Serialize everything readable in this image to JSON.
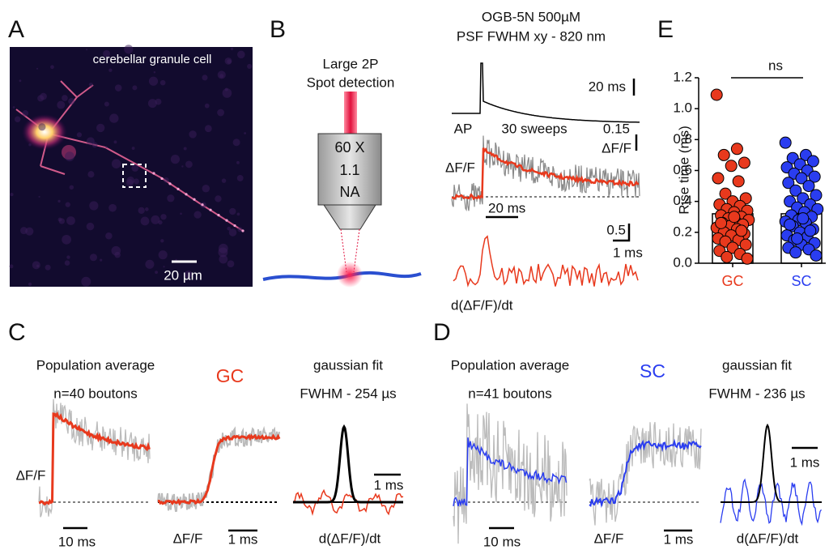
{
  "panels": {
    "A": {
      "label": "A",
      "caption": "cerebellar granule cell",
      "scale_bar": "20 µm"
    },
    "B": {
      "label": "B",
      "detection": [
        "Large 2P",
        "Spot detection"
      ],
      "objective": [
        "60 X",
        "1.1",
        "NA"
      ],
      "dye": "OGB-5N  500µM",
      "psf": "PSF FWHM xy - 820 nm",
      "ap_scale": "20 ms",
      "ap": "AP",
      "sweeps": "30 sweeps",
      "df_scale": "0.15",
      "df_scale_unit": "ΔF/F",
      "df_label": "ΔF/F",
      "time_scale": "20 ms",
      "deriv_scale": "0.5",
      "deriv_time": "1 ms",
      "deriv_label": "d(ΔF/F)/dt"
    },
    "C": {
      "label": "C",
      "title": "Population average",
      "n": "n=40 boutons",
      "cell": "GC",
      "fit": "gaussian fit",
      "fwhm": "FWHM - 254 µs",
      "df1": "ΔF/F",
      "t1": "10 ms",
      "df2": "ΔF/F",
      "t2": "1 ms",
      "t3": "1 ms",
      "deriv": "d(ΔF/F)/dt"
    },
    "D": {
      "label": "D",
      "title": "Population average",
      "n": "n=41 boutons",
      "cell": "SC",
      "fit": "gaussian fit",
      "fwhm": "FWHM - 236 µs",
      "t1": "10 ms",
      "df2": "ΔF/F",
      "t2": "1 ms",
      "t3": "1 ms",
      "deriv": "d(ΔF/F)/dt"
    }
  },
  "chart_data": {
    "type": "bar",
    "panel": "E",
    "ylabel": "Rise time (ms)",
    "annotation": "ns",
    "categories": [
      "GC",
      "SC"
    ],
    "values": [
      0.32,
      0.32
    ],
    "colors": [
      "#e8391d",
      "#2a3df0"
    ],
    "points": [
      [
        1.09,
        0.74,
        0.7,
        0.65,
        0.63,
        0.55,
        0.53,
        0.45,
        0.42,
        0.4,
        0.38,
        0.37,
        0.35,
        0.34,
        0.33,
        0.31,
        0.3,
        0.29,
        0.28,
        0.27,
        0.26,
        0.25,
        0.24,
        0.23,
        0.22,
        0.2,
        0.19,
        0.18,
        0.16,
        0.15,
        0.14,
        0.12,
        0.1,
        0.08,
        0.06,
        0.04,
        0.03,
        0.3,
        0.26,
        0.21
      ],
      [
        0.78,
        0.7,
        0.68,
        0.66,
        0.64,
        0.62,
        0.6,
        0.58,
        0.56,
        0.55,
        0.52,
        0.5,
        0.47,
        0.44,
        0.42,
        0.4,
        0.38,
        0.36,
        0.35,
        0.33,
        0.31,
        0.3,
        0.28,
        0.27,
        0.26,
        0.24,
        0.22,
        0.2,
        0.18,
        0.17,
        0.15,
        0.13,
        0.12,
        0.1,
        0.09,
        0.07,
        0.05,
        0.29,
        0.25,
        0.21,
        0.16
      ]
    ],
    "ylim": [
      0,
      1.2
    ],
    "yticks": [
      {
        "value": 0,
        "label": "0.0"
      },
      0.2,
      0.4,
      0.6,
      0.8,
      {
        "value": 1,
        "label": "1.0"
      },
      1.2
    ]
  }
}
